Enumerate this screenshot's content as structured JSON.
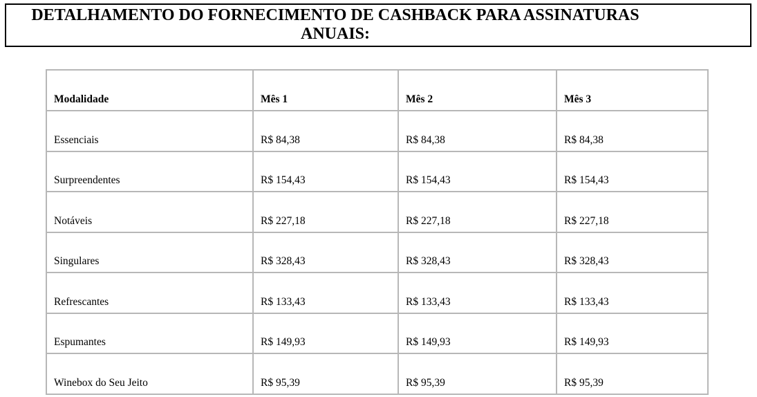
{
  "title": {
    "line1": "DETALHAMENTO DO FORNECIMENTO DE CASHBACK PARA ASSINATURAS",
    "line2": "ANUAIS:"
  },
  "table": {
    "header": [
      "Modalidade",
      "Mês 1",
      "Mês 2",
      "Mês 3"
    ],
    "rows": [
      [
        "Essenciais",
        "R$ 84,38",
        "R$ 84,38",
        "R$ 84,38"
      ],
      [
        "Surpreendentes",
        "R$ 154,43",
        "R$ 154,43",
        "R$ 154,43"
      ],
      [
        "Notáveis",
        "R$ 227,18",
        "R$ 227,18",
        "R$ 227,18"
      ],
      [
        "Singulares",
        "R$ 328,43",
        "R$ 328,43",
        "R$ 328,43"
      ],
      [
        "Refrescantes",
        "R$ 133,43",
        "R$ 133,43",
        "R$ 133,43"
      ],
      [
        "Espumantes",
        "R$ 149,93",
        "R$ 149,93",
        "R$ 149,93"
      ],
      [
        "Winebox do Seu Jeito",
        "R$ 95,39",
        "R$ 95,39",
        "R$ 95,39"
      ]
    ]
  },
  "colors": {
    "title_border": "#000000",
    "table_border": "#b7b7b7",
    "text": "#000000",
    "background": "#ffffff"
  }
}
